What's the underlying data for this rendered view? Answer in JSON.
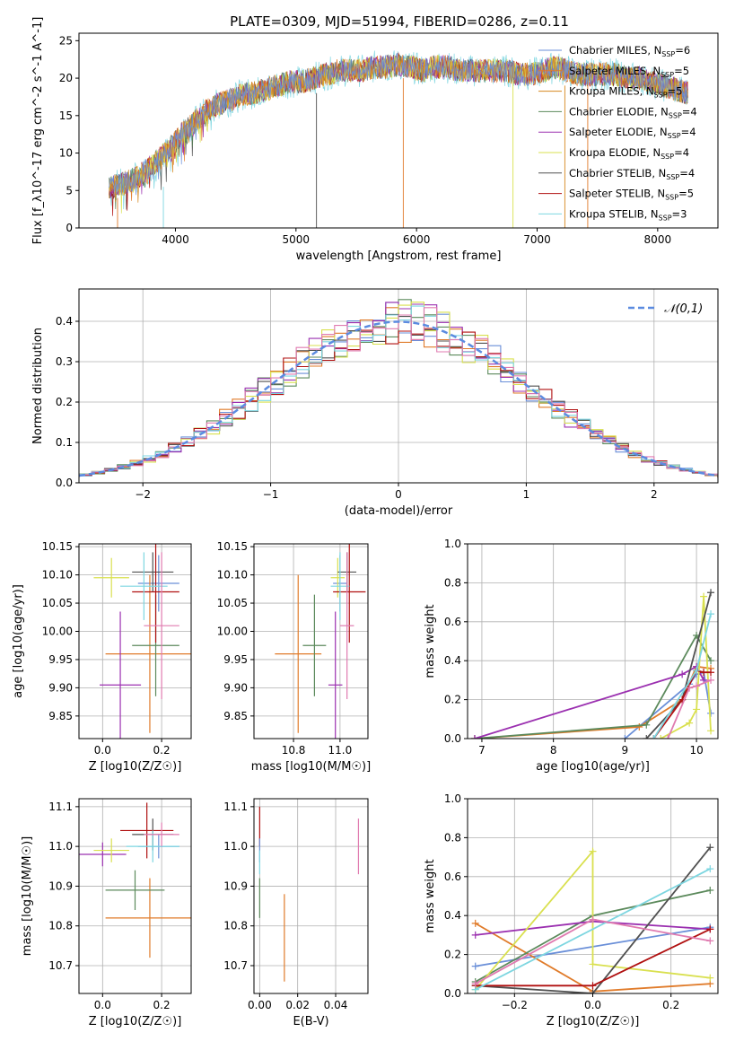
{
  "figure": {
    "title": "PLATE=0309, MJD=51994, FIBERID=0286, z=0.11"
  },
  "colors": {
    "series": [
      "#6a8fd8",
      "#e07b2a",
      "#d6861e",
      "#5c8a5c",
      "#9b30b0",
      "#d9e04f",
      "#505050",
      "#b01010",
      "#7dd6e0"
    ],
    "normal_curve": "#5b8be0",
    "pink": "#e07bb0",
    "grid": "#b0b0b0"
  },
  "chart_data": [
    {
      "id": "spectrum",
      "type": "line",
      "xlabel": "wavelength [Angstrom, rest frame]",
      "ylabel": "Flux [f_λ10^-17 erg cm^-2 s^-1 A^-1]",
      "xlim": [
        3200,
        8500
      ],
      "ylim": [
        0,
        26
      ],
      "xticks": [
        4000,
        5000,
        6000,
        7000,
        8000
      ],
      "yticks": [
        0,
        5,
        10,
        15,
        20,
        25
      ],
      "grid": false,
      "legend_position": "right",
      "x": [
        3450,
        3550,
        3650,
        3750,
        3850,
        3950,
        4050,
        4150,
        4250,
        4350,
        4450,
        4550,
        4650,
        4750,
        4850,
        4950,
        5050,
        5150,
        5250,
        5350,
        5450,
        5550,
        5650,
        5750,
        5850,
        5950,
        6050,
        6150,
        6250,
        6350,
        6450,
        6550,
        6650,
        6750,
        6850,
        6950,
        7050,
        7150,
        7250,
        7350,
        7450,
        7550,
        7650,
        7750,
        7850,
        7950,
        8050,
        8150,
        8250
      ],
      "y": [
        5.5,
        5.8,
        6.5,
        7.5,
        9.0,
        10.5,
        12.5,
        14.0,
        15.5,
        16.5,
        17.0,
        17.8,
        18.0,
        18.5,
        19.0,
        19.5,
        19.5,
        20.0,
        20.5,
        21.0,
        21.0,
        21.0,
        21.5,
        21.5,
        21.8,
        21.5,
        21.0,
        21.5,
        21.5,
        21.0,
        21.0,
        21.0,
        21.0,
        21.0,
        20.5,
        20.5,
        21.0,
        21.5,
        21.0,
        20.5,
        20.5,
        20.5,
        20.5,
        20.0,
        20.0,
        19.5,
        19.0,
        18.5,
        18.0
      ],
      "series": [
        {
          "name": "Chabrier MILES, N_SSP=6"
        },
        {
          "name": "Salpeter MILES, N_SSP=5"
        },
        {
          "name": "Kroupa MILES, N_SSP=5"
        },
        {
          "name": "Chabrier ELODIE, N_SSP=4"
        },
        {
          "name": "Salpeter ELODIE, N_SSP=4"
        },
        {
          "name": "Kroupa ELODIE, N_SSP=4"
        },
        {
          "name": "Chabrier STELIB, N_SSP=4"
        },
        {
          "name": "Salpeter STELIB, N_SSP=5"
        },
        {
          "name": "Kroupa STELIB, N_SSP=3"
        }
      ]
    },
    {
      "id": "residuals",
      "type": "line",
      "xlabel": "(data-model)/error",
      "ylabel": "Normed distribution",
      "xlim": [
        -2.5,
        2.5
      ],
      "ylim": [
        0,
        0.48
      ],
      "xticks": [
        -2,
        -1,
        0,
        1,
        2
      ],
      "yticks": [
        0.0,
        0.1,
        0.2,
        0.3,
        0.4
      ],
      "grid": true,
      "legend_position": "top-right",
      "legend_entry": "𝒩(0,1)",
      "bin_width": 0.1
    },
    {
      "id": "age_vs_Z",
      "type": "scatter",
      "xlabel": "Z [log10(Z/Z☉)]",
      "ylabel": "age  [log10(age/yr)]",
      "xlim": [
        -0.08,
        0.3
      ],
      "ylim": [
        9.81,
        10.155
      ],
      "xticks": [
        0.0,
        0.2
      ],
      "xticklabels": [
        "0.0",
        "0.2"
      ],
      "yticks": [
        9.85,
        9.9,
        9.95,
        10.0,
        10.05,
        10.1,
        10.15
      ],
      "grid": true,
      "points": [
        {
          "x": 0.19,
          "y": 10.085,
          "xerr": 0.07,
          "yerr": 0.05,
          "c": 0
        },
        {
          "x": 0.16,
          "y": 9.96,
          "xerr": 0.15,
          "yerr": 0.14,
          "c": 1
        },
        {
          "x": 0.18,
          "y": 9.975,
          "xerr": 0.08,
          "yerr": 0.09,
          "c": 3
        },
        {
          "x": 0.06,
          "y": 9.905,
          "xerr": 0.07,
          "yerr": 0.13,
          "c": 4
        },
        {
          "x": 0.03,
          "y": 10.095,
          "xerr": 0.06,
          "yerr": 0.035,
          "c": 5
        },
        {
          "x": 0.17,
          "y": 10.105,
          "xerr": 0.07,
          "yerr": 0.035,
          "c": 6
        },
        {
          "x": 0.18,
          "y": 10.07,
          "xerr": 0.08,
          "yerr": 0.09,
          "c": 7
        },
        {
          "x": 0.14,
          "y": 10.08,
          "xerr": 0.08,
          "yerr": 0.06,
          "c": 8
        },
        {
          "x": 0.2,
          "y": 10.01,
          "xerr": 0.06,
          "yerr": 0.13,
          "c": 9
        }
      ]
    },
    {
      "id": "age_vs_mass",
      "type": "scatter",
      "xlabel": "mass [log10(M/M☉)]",
      "xlim": [
        10.63,
        11.12
      ],
      "ylim": [
        9.81,
        10.155
      ],
      "xticks": [
        10.8,
        11.0
      ],
      "xticklabels": [
        "10.8",
        "11.0"
      ],
      "yticks": [
        9.85,
        9.9,
        9.95,
        10.0,
        10.05,
        10.1,
        10.15
      ],
      "grid": true,
      "points": [
        {
          "x": 11.0,
          "y": 10.085,
          "xerr": 0.03,
          "yerr": 0.05,
          "c": 0
        },
        {
          "x": 10.82,
          "y": 9.96,
          "xerr": 0.1,
          "yerr": 0.14,
          "c": 1
        },
        {
          "x": 10.89,
          "y": 9.975,
          "xerr": 0.05,
          "yerr": 0.09,
          "c": 3
        },
        {
          "x": 10.98,
          "y": 9.905,
          "xerr": 0.03,
          "yerr": 0.13,
          "c": 4
        },
        {
          "x": 10.99,
          "y": 10.095,
          "xerr": 0.03,
          "yerr": 0.035,
          "c": 5
        },
        {
          "x": 11.03,
          "y": 10.105,
          "xerr": 0.04,
          "yerr": 0.035,
          "c": 6
        },
        {
          "x": 11.04,
          "y": 10.07,
          "xerr": 0.07,
          "yerr": 0.09,
          "c": 7
        },
        {
          "x": 11.0,
          "y": 10.08,
          "xerr": 0.04,
          "yerr": 0.06,
          "c": 8
        },
        {
          "x": 11.03,
          "y": 10.01,
          "xerr": 0.03,
          "yerr": 0.13,
          "c": 9
        }
      ]
    },
    {
      "id": "mass_vs_Z",
      "type": "scatter",
      "xlabel": "Z [log10(Z/Z☉)]",
      "ylabel": "mass [log10(M/M☉)]",
      "xlim": [
        -0.08,
        0.3
      ],
      "ylim": [
        10.63,
        11.12
      ],
      "xticks": [
        0.0,
        0.2
      ],
      "xticklabels": [
        "0.0",
        "0.2"
      ],
      "yticks": [
        10.7,
        10.8,
        10.9,
        11.0,
        11.1
      ],
      "grid": true,
      "points": [
        {
          "x": 0.19,
          "y": 11.0,
          "xerr": 0.07,
          "yerr": 0.03,
          "c": 0
        },
        {
          "x": 0.16,
          "y": 10.82,
          "xerr": 0.15,
          "yerr": 0.1,
          "c": 1
        },
        {
          "x": 0.11,
          "y": 10.89,
          "xerr": 0.1,
          "yerr": 0.05,
          "c": 3
        },
        {
          "x": 0.0,
          "y": 10.98,
          "xerr": 0.08,
          "yerr": 0.03,
          "c": 4
        },
        {
          "x": 0.03,
          "y": 10.99,
          "xerr": 0.06,
          "yerr": 0.03,
          "c": 5
        },
        {
          "x": 0.17,
          "y": 11.03,
          "xerr": 0.07,
          "yerr": 0.04,
          "c": 6
        },
        {
          "x": 0.15,
          "y": 11.04,
          "xerr": 0.09,
          "yerr": 0.07,
          "c": 7
        },
        {
          "x": 0.17,
          "y": 11.0,
          "xerr": 0.09,
          "yerr": 0.04,
          "c": 8
        },
        {
          "x": 0.2,
          "y": 11.03,
          "xerr": 0.06,
          "yerr": 0.03,
          "c": 9
        }
      ]
    },
    {
      "id": "mass_vs_ebv",
      "type": "scatter",
      "xlabel": "E(B-V)",
      "xlim": [
        -0.003,
        0.057
      ],
      "ylim": [
        10.63,
        11.12
      ],
      "xticks": [
        0.0,
        0.02,
        0.04
      ],
      "xticklabels": [
        "0.00",
        "0.02",
        "0.04"
      ],
      "yticks": [
        10.7,
        10.8,
        10.9,
        11.0,
        11.1
      ],
      "grid": true,
      "points": [
        {
          "x": 0.0,
          "y": 11.05,
          "yerr": 0.05,
          "c": 7
        },
        {
          "x": 0.0,
          "y": 10.99,
          "yerr": 0.03,
          "c": 0
        },
        {
          "x": 0.0,
          "y": 10.96,
          "yerr": 0.03,
          "c": 8
        },
        {
          "x": 0.013,
          "y": 10.77,
          "yerr": 0.11,
          "c": 1
        },
        {
          "x": 0.0,
          "y": 10.87,
          "yerr": 0.05,
          "c": 3
        },
        {
          "x": 0.052,
          "y": 11.0,
          "yerr": 0.07,
          "c": 9
        }
      ]
    },
    {
      "id": "weight_vs_age",
      "type": "line",
      "xlabel": "age  [log10(age/yr)]",
      "ylabel": "mass weight",
      "xlim": [
        6.8,
        10.3
      ],
      "ylim": [
        0,
        1
      ],
      "xticks": [
        7,
        8,
        9,
        10
      ],
      "yticks": [
        0.0,
        0.2,
        0.4,
        0.6,
        0.8,
        1.0
      ],
      "grid": true,
      "series": [
        {
          "c": 0,
          "x": [
            9.0,
            9.9,
            10.0,
            10.1,
            10.2
          ],
          "y": [
            0.0,
            0.28,
            0.33,
            0.34,
            0.13
          ]
        },
        {
          "c": 1,
          "x": [
            6.9,
            9.2,
            9.8,
            10.0,
            10.2
          ],
          "y": [
            0.0,
            0.06,
            0.2,
            0.37,
            0.36
          ]
        },
        {
          "c": 3,
          "x": [
            6.9,
            9.3,
            10.0,
            10.2
          ],
          "y": [
            0.0,
            0.07,
            0.53,
            0.4
          ]
        },
        {
          "c": 4,
          "x": [
            6.9,
            9.8,
            10.0,
            10.1
          ],
          "y": [
            0.0,
            0.33,
            0.37,
            0.3
          ]
        },
        {
          "c": 5,
          "x": [
            9.5,
            9.9,
            10.0,
            10.1,
            10.2
          ],
          "y": [
            0.0,
            0.08,
            0.15,
            0.73,
            0.04
          ]
        },
        {
          "c": 6,
          "x": [
            9.3,
            9.8,
            10.2
          ],
          "y": [
            0.0,
            0.2,
            0.75
          ]
        },
        {
          "c": 7,
          "x": [
            9.4,
            9.8,
            10.0,
            10.1,
            10.2
          ],
          "y": [
            0.0,
            0.2,
            0.35,
            0.34,
            0.34
          ]
        },
        {
          "c": 8,
          "x": [
            9.4,
            10.0,
            10.2
          ],
          "y": [
            0.0,
            0.35,
            0.64
          ]
        },
        {
          "c": 9,
          "x": [
            9.6,
            9.9,
            10.0,
            10.2
          ],
          "y": [
            0.0,
            0.26,
            0.27,
            0.3
          ]
        }
      ]
    },
    {
      "id": "weight_vs_Z",
      "type": "line",
      "xlabel": "Z [log10(Z/Z☉)]",
      "ylabel": "mass weight",
      "xlim": [
        -0.32,
        0.32
      ],
      "ylim": [
        0,
        1
      ],
      "xticks": [
        -0.2,
        0.0,
        0.2
      ],
      "xticklabels": [
        "−0.2",
        "0.0",
        "0.2"
      ],
      "yticks": [
        0.0,
        0.2,
        0.4,
        0.6,
        0.8,
        1.0
      ],
      "grid": true,
      "series": [
        {
          "c": 0,
          "x": [
            -0.3,
            0.3
          ],
          "y": [
            0.14,
            0.34
          ]
        },
        {
          "c": 1,
          "x": [
            -0.3,
            0.0,
            0.3
          ],
          "y": [
            0.36,
            0.01,
            0.05
          ]
        },
        {
          "c": 3,
          "x": [
            -0.3,
            0.0,
            0.3
          ],
          "y": [
            0.06,
            0.4,
            0.53
          ]
        },
        {
          "c": 4,
          "x": [
            -0.3,
            0.0,
            0.3
          ],
          "y": [
            0.3,
            0.37,
            0.33
          ]
        },
        {
          "c": 5,
          "x": [
            -0.3,
            0.0,
            0.0,
            0.3
          ],
          "y": [
            0.02,
            0.73,
            0.15,
            0.08
          ]
        },
        {
          "c": 6,
          "x": [
            -0.3,
            0.0,
            0.3
          ],
          "y": [
            0.04,
            0.0,
            0.75
          ]
        },
        {
          "c": 7,
          "x": [
            -0.3,
            0.0,
            0.3
          ],
          "y": [
            0.04,
            0.04,
            0.33
          ]
        },
        {
          "c": 8,
          "x": [
            -0.3,
            0.3
          ],
          "y": [
            0.02,
            0.64
          ]
        },
        {
          "c": 9,
          "x": [
            -0.3,
            0.0,
            0.3
          ],
          "y": [
            0.05,
            0.38,
            0.27
          ]
        }
      ]
    }
  ]
}
